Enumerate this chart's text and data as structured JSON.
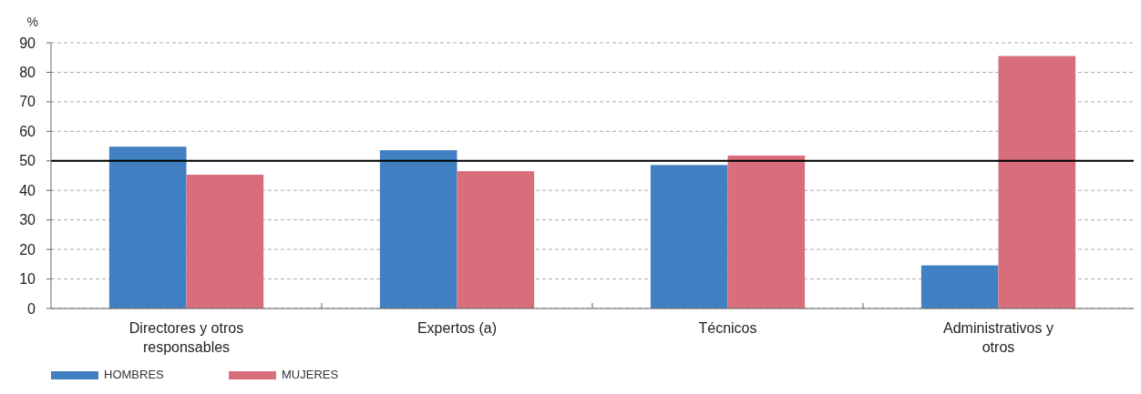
{
  "chart_data": {
    "type": "bar",
    "ylabel": "%",
    "categories": [
      "Directores y otros responsables",
      "Expertos (a)",
      "Técnicos",
      "Administrativos y otros"
    ],
    "series": [
      {
        "name": "HOMBRES",
        "color": "#4180c2",
        "values": [
          54.8,
          53.6,
          48.6,
          14.6
        ]
      },
      {
        "name": "MUJERES",
        "color": "#d86e7b",
        "values": [
          45.3,
          46.5,
          51.8,
          85.5
        ]
      }
    ],
    "ylim": [
      0,
      90
    ],
    "yticks": [
      0,
      10,
      20,
      30,
      40,
      50,
      60,
      70,
      80,
      90
    ],
    "grid": "y",
    "legend": "bottom left",
    "ref_lines": [
      {
        "axis": "y",
        "value": 50,
        "color": "#000000"
      }
    ]
  }
}
